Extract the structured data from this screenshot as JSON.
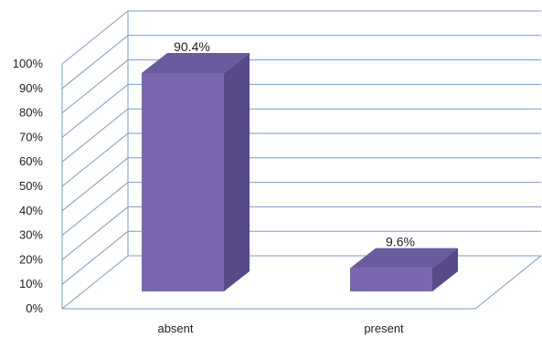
{
  "chart_data": {
    "type": "bar",
    "categories": [
      "absent",
      "present"
    ],
    "values": [
      90.4,
      9.6
    ],
    "data_labels": [
      "90.4%",
      "9.6%"
    ],
    "y_ticks": [
      "0%",
      "10%",
      "20%",
      "30%",
      "40%",
      "50%",
      "60%",
      "70%",
      "80%",
      "90%",
      "100%"
    ],
    "ylim": [
      0,
      100
    ],
    "title": "",
    "xlabel": "",
    "ylabel": "",
    "grid": true,
    "style": "3d",
    "colors": {
      "bar_front": "#7b67b0",
      "bar_side": "#574a86",
      "bar_top": "#6a5a9e",
      "grid": "#7a9ac4"
    }
  }
}
